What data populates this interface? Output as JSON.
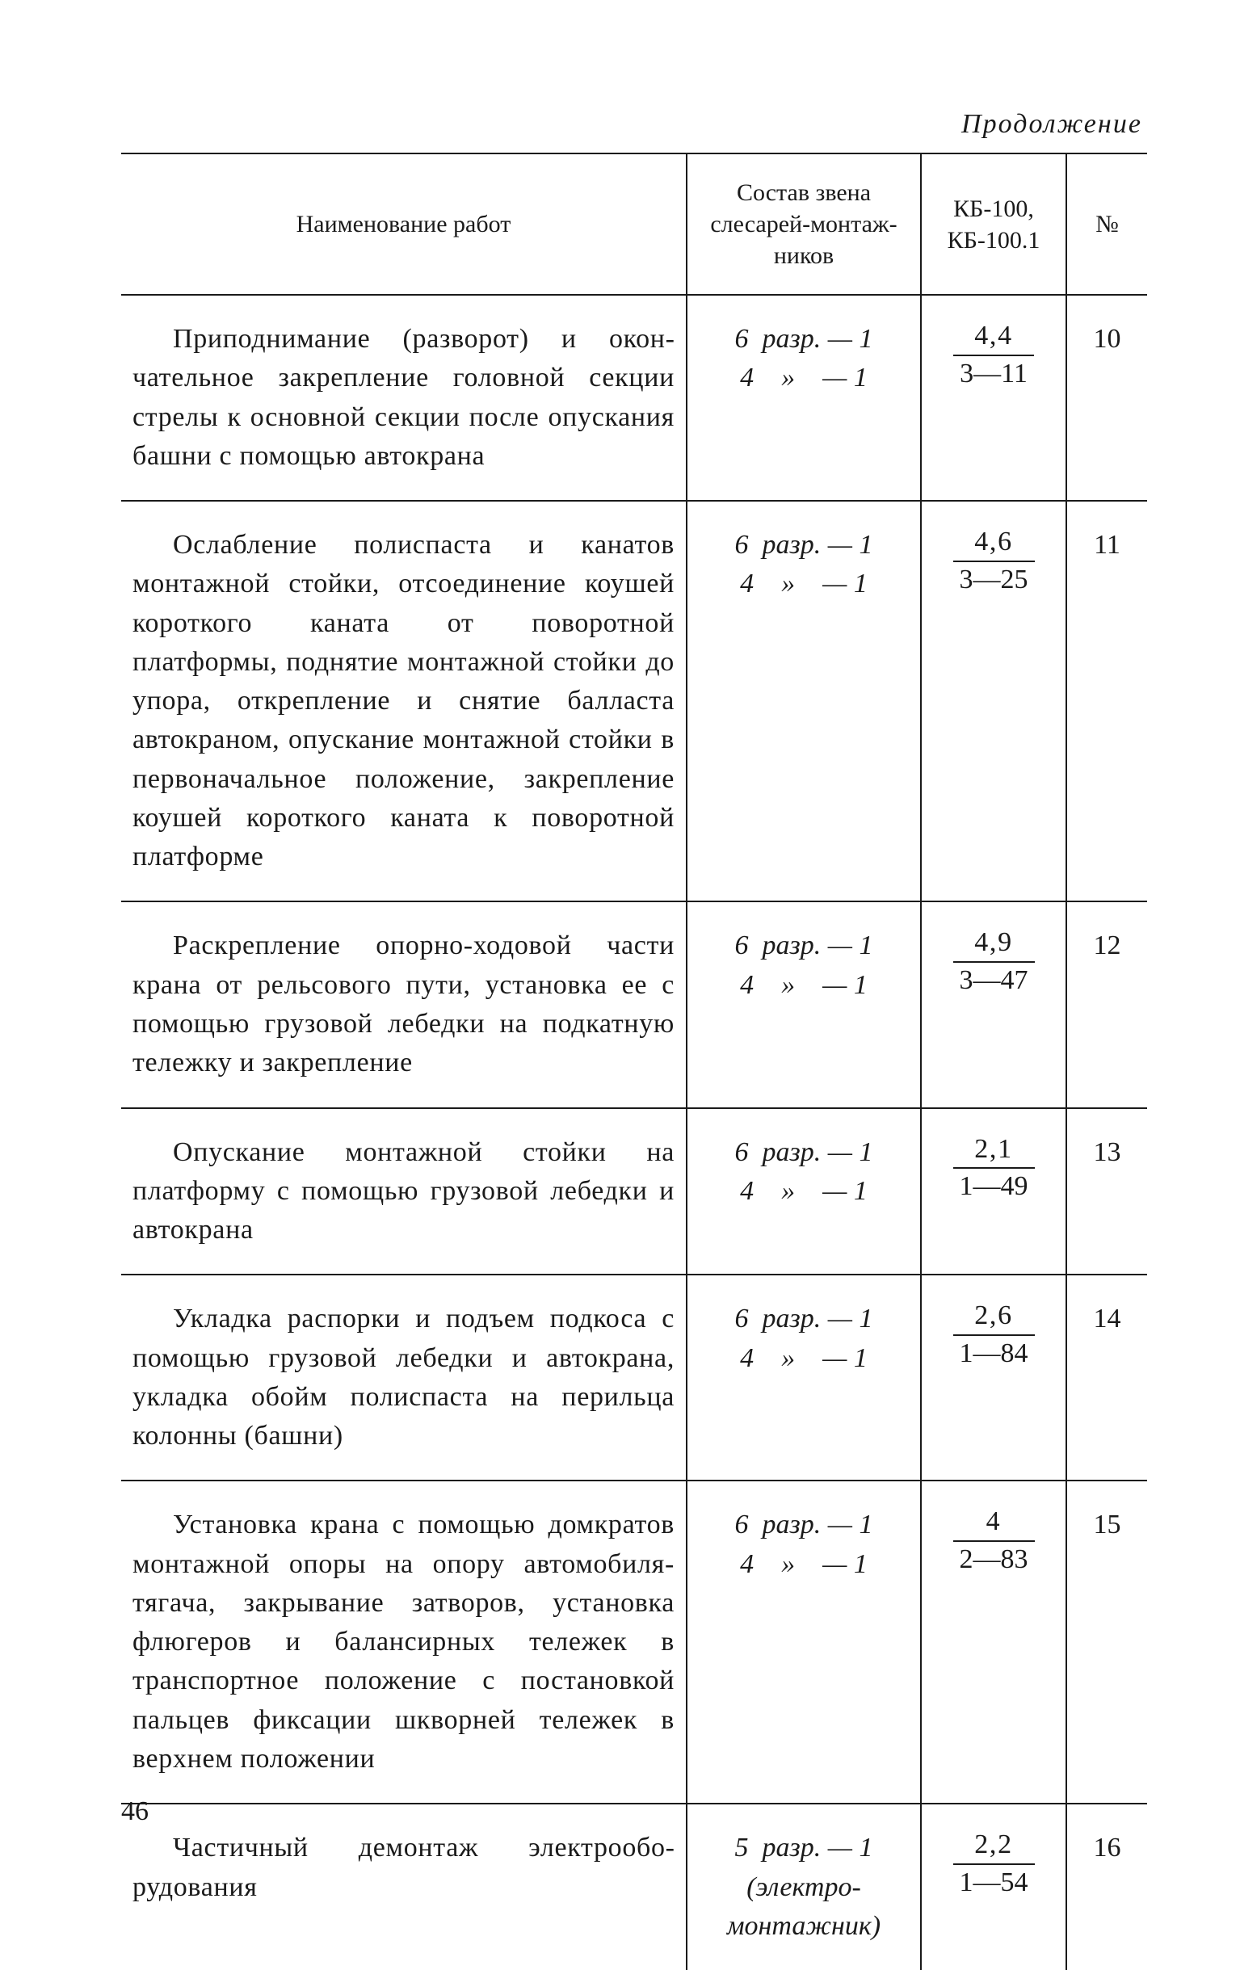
{
  "continuation_label": "Продолжение",
  "page_number": "46",
  "table": {
    "headers": {
      "name": "Наименование работ",
      "crew": "Состав звена слесарей-монтаж­ников",
      "vals": "КБ-100, КБ-100.1",
      "num": "№"
    },
    "rows": [
      {
        "name": "Приподнимание (разворот) и окон­чательное закрепление головной сек­ции стрелы к основной секции после опускания башни с помощью авто­крана",
        "crew_line1": "6  разр. — 1",
        "crew_line2": "4    »    — 1",
        "val_top": "4,4",
        "val_bot": "3—11",
        "num": "10"
      },
      {
        "name": "Ослабление полиспаста и канатов монтажной стойки, отсоединение коу­шей короткого каната от поворотной платформы, поднятие монтажной стойки до упора, открепление и сня­тие балласта автокраном, опускание монтажной стойки в первоначальное положение, закрепление коушей ко­роткого каната к поворотной плат­форме",
        "crew_line1": "6  разр. — 1",
        "crew_line2": "4    »    — 1",
        "val_top": "4,6",
        "val_bot": "3—25",
        "num": "11"
      },
      {
        "name": "Раскрепление опорно-ходовой ча­сти крана от рельсового пути, уста­новка ее с помощью грузовой лебед­ки на подкатную тележку и закреп­ление",
        "crew_line1": "6  разр. — 1",
        "crew_line2": "4    »    — 1",
        "val_top": "4,9",
        "val_bot": "3—47",
        "num": "12"
      },
      {
        "name": "Опускание монтажной стойки на платформу с помощью грузовой ле­бедки и автокрана",
        "crew_line1": "6  разр. — 1",
        "crew_line2": "4    »    — 1",
        "val_top": "2,1",
        "val_bot": "1—49",
        "num": "13"
      },
      {
        "name": "Укладка распорки и подъем подко­са с помощью грузовой лебедки и автокрана, укладка обойм полиспаста на перильца колонны (башни)",
        "crew_line1": "6  разр. — 1",
        "crew_line2": "4    »    — 1",
        "val_top": "2,6",
        "val_bot": "1—84",
        "num": "14"
      },
      {
        "name": "Установка крана с помощью дом­кратов монтажной опоры на опору автомобиля-тягача, закрывание за­творов, установка флюгеров и балан­сирных тележек в транспортное поло­жение с постановкой пальцев фикса­ции шкворней тележек в верхнем по­ложении",
        "crew_line1": "6  разр. — 1",
        "crew_line2": "4    »    — 1",
        "val_top": "4",
        "val_bot": "2—83",
        "num": "15"
      },
      {
        "name": "Частичный демонтаж электрообо­рудования",
        "crew_line1": "5  разр. — 1",
        "crew_line2": "(электро-",
        "crew_line3": "монтажник)",
        "val_top": "2,2",
        "val_bot": "1—54",
        "num": "16"
      }
    ]
  }
}
